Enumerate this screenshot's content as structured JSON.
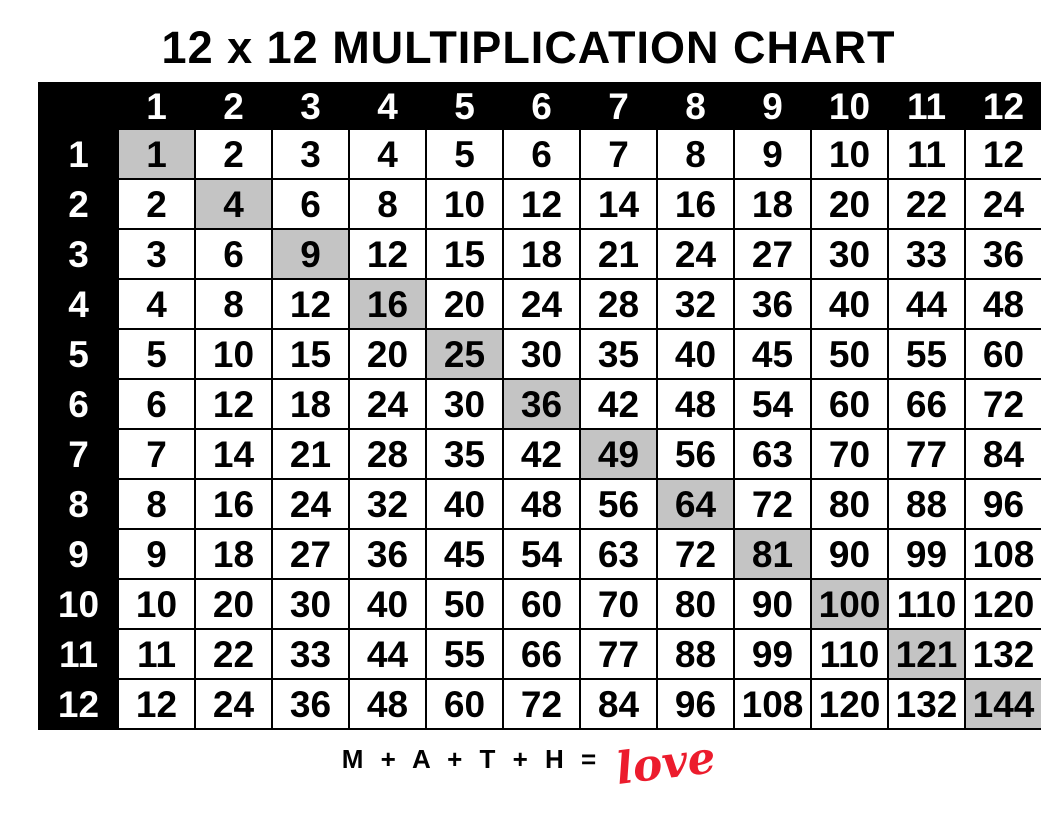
{
  "page": {
    "title": "12 x 12 MULTIPLICATION CHART"
  },
  "chart_data": {
    "type": "table",
    "title": "12 x 12 MULTIPLICATION CHART",
    "col_headers": [
      "1",
      "2",
      "3",
      "4",
      "5",
      "6",
      "7",
      "8",
      "9",
      "10",
      "11",
      "12"
    ],
    "row_headers": [
      "1",
      "2",
      "3",
      "4",
      "5",
      "6",
      "7",
      "8",
      "9",
      "10",
      "11",
      "12"
    ],
    "rows": [
      [
        1,
        2,
        3,
        4,
        5,
        6,
        7,
        8,
        9,
        10,
        11,
        12
      ],
      [
        2,
        4,
        6,
        8,
        10,
        12,
        14,
        16,
        18,
        20,
        22,
        24
      ],
      [
        3,
        6,
        9,
        12,
        15,
        18,
        21,
        24,
        27,
        30,
        33,
        36
      ],
      [
        4,
        8,
        12,
        16,
        20,
        24,
        28,
        32,
        36,
        40,
        44,
        48
      ],
      [
        5,
        10,
        15,
        20,
        25,
        30,
        35,
        40,
        45,
        50,
        55,
        60
      ],
      [
        6,
        12,
        18,
        24,
        30,
        36,
        42,
        48,
        54,
        60,
        66,
        72
      ],
      [
        7,
        14,
        21,
        28,
        35,
        42,
        49,
        56,
        63,
        70,
        77,
        84
      ],
      [
        8,
        16,
        24,
        32,
        40,
        48,
        56,
        64,
        72,
        80,
        88,
        96
      ],
      [
        9,
        18,
        27,
        36,
        45,
        54,
        63,
        72,
        81,
        90,
        99,
        108
      ],
      [
        10,
        20,
        30,
        40,
        50,
        60,
        70,
        80,
        90,
        100,
        110,
        120
      ],
      [
        11,
        22,
        33,
        44,
        55,
        66,
        77,
        88,
        99,
        110,
        121,
        132
      ],
      [
        12,
        24,
        36,
        48,
        60,
        72,
        84,
        96,
        108,
        120,
        132,
        144
      ]
    ],
    "highlighted_diagonal_values": [
      1,
      4,
      9,
      16,
      25,
      36,
      49,
      64,
      81,
      100,
      121,
      144
    ],
    "layout_hints": {
      "header_style": "black background, white numerals",
      "diagonal_style": "gray highlight on perfect squares",
      "grid": "black gridlines, no outer-right border"
    }
  },
  "footer": {
    "equation": "M + A + T + H =",
    "love_word": "love"
  },
  "colors": {
    "header_bg": "#000000",
    "header_fg": "#ffffff",
    "cell_bg": "#ffffff",
    "cell_fg": "#000000",
    "diagonal_bg": "#c4c4c4",
    "love_red": "#ec1c2d",
    "title_fg": "#000000"
  }
}
